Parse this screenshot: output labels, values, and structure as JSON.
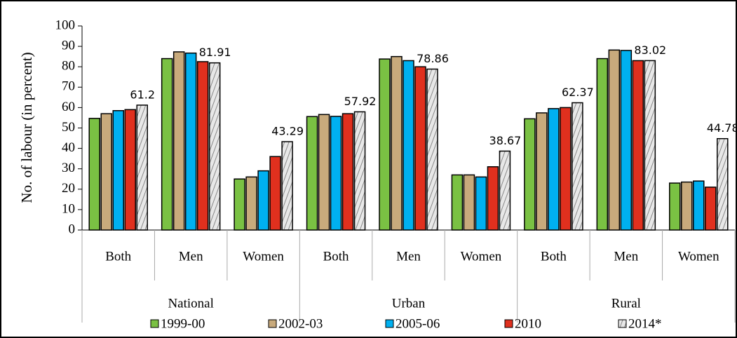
{
  "chart_data": {
    "type": "bar",
    "y_label": "No. of labour (in percent)",
    "categories": [
      "Both",
      "Men",
      "Women",
      "Both",
      "Men",
      "Women",
      "Both",
      "Men",
      "Women"
    ],
    "groups": [
      "National",
      "Urban",
      "Rural"
    ],
    "ylim": [
      0,
      100
    ],
    "yticks": [
      0,
      10,
      20,
      30,
      40,
      50,
      60,
      70,
      80,
      90,
      100
    ],
    "series": [
      {
        "name": "1999-00",
        "color": "#7ac143",
        "values": [
          54.7,
          84,
          25,
          55.6,
          83.8,
          27,
          54.5,
          84,
          23
        ]
      },
      {
        "name": "2002-03",
        "color": "#c8aa7c",
        "values": [
          57,
          87.3,
          26,
          56.6,
          85,
          27,
          57.4,
          88.2,
          23.5
        ]
      },
      {
        "name": "2005-06",
        "color": "#00b0f0",
        "values": [
          58.5,
          86.7,
          29,
          55.7,
          83,
          26,
          59.5,
          88,
          24
        ]
      },
      {
        "name": "2010",
        "color": "#e0301e",
        "values": [
          59,
          82.5,
          36,
          57,
          80,
          31,
          60,
          83,
          21
        ]
      },
      {
        "name": "2014*",
        "color": "#d8d8d8",
        "values": [
          61.2,
          81.91,
          43.29,
          57.92,
          78.86,
          38.67,
          62.37,
          83.02,
          44.78
        ],
        "labels": true
      }
    ]
  }
}
